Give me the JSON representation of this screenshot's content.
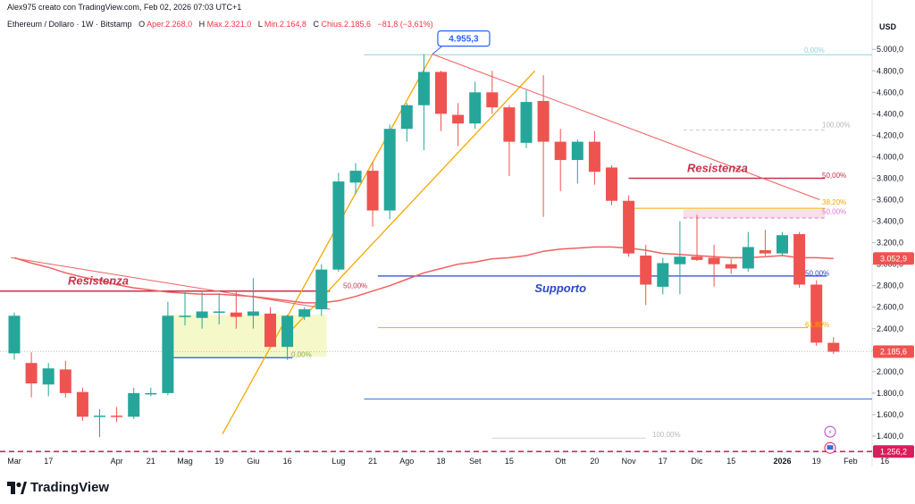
{
  "header": {
    "text": "Alex975 creato con TradingView.com, Feb 02, 2026 07:03 UTC+1"
  },
  "legend": {
    "symbol": "Ethereum / Dollaro · 1W · Bitstamp",
    "o_label": "O",
    "open": "Aper.2.268,0",
    "h_label": "H",
    "high": "Max.2.321,0",
    "l_label": "L",
    "low": "Min.2.164,8",
    "c_label": "C",
    "close": "Chius.2.185,6",
    "change": "−81,8 (−3,61%)"
  },
  "logo": {
    "text": "TradingView"
  },
  "colors": {
    "up": "#26a69a",
    "down": "#ef5350",
    "ma": "#f06060",
    "channel": "#f7a600",
    "support": "#2c46c7",
    "resistance": "#c2344a",
    "fib_blue": "#4a90d9"
  },
  "chart_data": {
    "type": "candlestick",
    "currency": "USD",
    "ylim": [
      1250,
      5160
    ],
    "y_ticks": [
      "1.400,0",
      "1.600,0",
      "1.800,0",
      "2.000,0",
      "2.200,0",
      "2.400,0",
      "2.600,0",
      "2.800,0",
      "3.000,0",
      "3.200,0",
      "3.400,0",
      "3.600,0",
      "3.800,0",
      "4.000,0",
      "4.200,0",
      "4.400,0",
      "4.600,0",
      "4.800,0",
      "5.000,0"
    ],
    "y_tick_values": [
      1400,
      1600,
      1800,
      2000,
      2200,
      2400,
      2600,
      2800,
      3000,
      3200,
      3400,
      3600,
      3800,
      4000,
      4200,
      4400,
      4600,
      4800,
      5000
    ],
    "x_labels": [
      {
        "i": 0,
        "t": "Mar",
        "bold": false
      },
      {
        "i": 2,
        "t": "17",
        "bold": false
      },
      {
        "i": 6,
        "t": "Apr",
        "bold": false
      },
      {
        "i": 8,
        "t": "21",
        "bold": false
      },
      {
        "i": 10,
        "t": "Mag",
        "bold": false
      },
      {
        "i": 12,
        "t": "19",
        "bold": false
      },
      {
        "i": 14,
        "t": "Giu",
        "bold": false
      },
      {
        "i": 16,
        "t": "16",
        "bold": false
      },
      {
        "i": 19,
        "t": "Lug",
        "bold": false
      },
      {
        "i": 21,
        "t": "21",
        "bold": false
      },
      {
        "i": 23,
        "t": "Ago",
        "bold": false
      },
      {
        "i": 25,
        "t": "18",
        "bold": false
      },
      {
        "i": 27,
        "t": "Set",
        "bold": false
      },
      {
        "i": 29,
        "t": "15",
        "bold": false
      },
      {
        "i": 32,
        "t": "Ott",
        "bold": false
      },
      {
        "i": 34,
        "t": "20",
        "bold": false
      },
      {
        "i": 36,
        "t": "Nov",
        "bold": false
      },
      {
        "i": 38,
        "t": "17",
        "bold": false
      },
      {
        "i": 40,
        "t": "Dic",
        "bold": false
      },
      {
        "i": 42,
        "t": "15",
        "bold": false
      },
      {
        "i": 45,
        "t": "2026",
        "bold": true
      },
      {
        "i": 47,
        "t": "19",
        "bold": false
      },
      {
        "i": 49,
        "t": "Feb",
        "bold": false
      },
      {
        "i": 51,
        "t": "16",
        "bold": false
      }
    ],
    "candles": [
      {
        "o": 2170,
        "h": 2550,
        "l": 2110,
        "c": 2520
      },
      {
        "o": 2080,
        "h": 2180,
        "l": 1760,
        "c": 1890
      },
      {
        "o": 1880,
        "h": 2080,
        "l": 1770,
        "c": 2030
      },
      {
        "o": 2020,
        "h": 2100,
        "l": 1760,
        "c": 1800
      },
      {
        "o": 1810,
        "h": 1850,
        "l": 1540,
        "c": 1580
      },
      {
        "o": 1580,
        "h": 1650,
        "l": 1390,
        "c": 1590
      },
      {
        "o": 1590,
        "h": 1670,
        "l": 1530,
        "c": 1580
      },
      {
        "o": 1580,
        "h": 1850,
        "l": 1560,
        "c": 1800
      },
      {
        "o": 1790,
        "h": 1850,
        "l": 1770,
        "c": 1800
      },
      {
        "o": 1800,
        "h": 2650,
        "l": 1780,
        "c": 2520
      },
      {
        "o": 2510,
        "h": 2740,
        "l": 2430,
        "c": 2520
      },
      {
        "o": 2500,
        "h": 2740,
        "l": 2400,
        "c": 2560
      },
      {
        "o": 2550,
        "h": 2730,
        "l": 2440,
        "c": 2560
      },
      {
        "o": 2550,
        "h": 2750,
        "l": 2400,
        "c": 2510
      },
      {
        "o": 2520,
        "h": 2870,
        "l": 2400,
        "c": 2560
      },
      {
        "o": 2540,
        "h": 2600,
        "l": 2260,
        "c": 2230
      },
      {
        "o": 2230,
        "h": 2530,
        "l": 2110,
        "c": 2520
      },
      {
        "o": 2510,
        "h": 2600,
        "l": 2480,
        "c": 2580
      },
      {
        "o": 2580,
        "h": 3000,
        "l": 2520,
        "c": 2950
      },
      {
        "o": 2950,
        "h": 3850,
        "l": 2930,
        "c": 3770
      },
      {
        "o": 3760,
        "h": 3940,
        "l": 3650,
        "c": 3870
      },
      {
        "o": 3870,
        "h": 3950,
        "l": 3350,
        "c": 3500
      },
      {
        "o": 3500,
        "h": 4300,
        "l": 3420,
        "c": 4260
      },
      {
        "o": 4260,
        "h": 4500,
        "l": 4140,
        "c": 4480
      },
      {
        "o": 4480,
        "h": 4955,
        "l": 4060,
        "c": 4790
      },
      {
        "o": 4790,
        "h": 4800,
        "l": 4240,
        "c": 4400
      },
      {
        "o": 4390,
        "h": 4500,
        "l": 4100,
        "c": 4310
      },
      {
        "o": 4310,
        "h": 4700,
        "l": 4260,
        "c": 4600
      },
      {
        "o": 4600,
        "h": 4800,
        "l": 4400,
        "c": 4460
      },
      {
        "o": 4460,
        "h": 4480,
        "l": 3820,
        "c": 4140
      },
      {
        "o": 4130,
        "h": 4620,
        "l": 4080,
        "c": 4510
      },
      {
        "o": 4520,
        "h": 4760,
        "l": 3440,
        "c": 4140
      },
      {
        "o": 4140,
        "h": 4260,
        "l": 3680,
        "c": 3970
      },
      {
        "o": 3970,
        "h": 4160,
        "l": 3750,
        "c": 4140
      },
      {
        "o": 4140,
        "h": 4240,
        "l": 3740,
        "c": 3860
      },
      {
        "o": 3900,
        "h": 3920,
        "l": 3550,
        "c": 3590
      },
      {
        "o": 3590,
        "h": 3640,
        "l": 3070,
        "c": 3100
      },
      {
        "o": 3080,
        "h": 3180,
        "l": 2620,
        "c": 2810
      },
      {
        "o": 2790,
        "h": 3060,
        "l": 2720,
        "c": 3010
      },
      {
        "o": 3000,
        "h": 3400,
        "l": 2720,
        "c": 3070
      },
      {
        "o": 3070,
        "h": 3460,
        "l": 3030,
        "c": 3040
      },
      {
        "o": 3060,
        "h": 3180,
        "l": 2790,
        "c": 3000
      },
      {
        "o": 3000,
        "h": 3050,
        "l": 2910,
        "c": 2960
      },
      {
        "o": 2960,
        "h": 3300,
        "l": 2930,
        "c": 3160
      },
      {
        "o": 3130,
        "h": 3320,
        "l": 3080,
        "c": 3100
      },
      {
        "o": 3100,
        "h": 3300,
        "l": 3080,
        "c": 3270
      },
      {
        "o": 3280,
        "h": 3300,
        "l": 2780,
        "c": 2810
      },
      {
        "o": 2810,
        "h": 2850,
        "l": 2240,
        "c": 2270
      },
      {
        "o": 2268,
        "h": 2321,
        "l": 2164.8,
        "c": 2185.6
      }
    ],
    "ma_series": [
      3060,
      3010,
      2970,
      2920,
      2880,
      2850,
      2810,
      2780,
      2760,
      2740,
      2730,
      2720,
      2720,
      2710,
      2700,
      2680,
      2660,
      2640,
      2640,
      2660,
      2700,
      2750,
      2800,
      2860,
      2920,
      2960,
      3000,
      3020,
      3050,
      3060,
      3080,
      3120,
      3140,
      3150,
      3160,
      3160,
      3150,
      3130,
      3100,
      3090,
      3080,
      3070,
      3060,
      3060,
      3070,
      3080,
      3060,
      3060,
      3053
    ],
    "ma_last": "3.052,9",
    "price_last": "2.185,6",
    "alert_price": "1.256,2",
    "alert_value": 1256.2,
    "high_callout": "4.955,3",
    "high_value": 4955.3,
    "annotations": {
      "resistance_left": "Resistenza",
      "resistance_right": "Resistenza",
      "support": "Supporto"
    },
    "fib_labels": {
      "left_0": "0,00%",
      "left_50": "50,00%",
      "left_100": "100,00%",
      "right_0": "0,00%",
      "right_100": "100,00%",
      "right_50_red": "50,00%",
      "right_382": "38,20%",
      "right_50_pink": "50,00%",
      "right_50_blue": "50,00%",
      "right_618": "61,80%"
    }
  }
}
